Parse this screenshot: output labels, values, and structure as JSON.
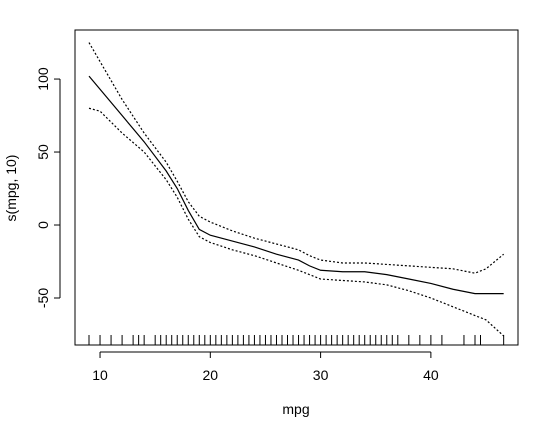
{
  "chart_data": {
    "type": "line",
    "x_label": "mpg",
    "y_label": "s(mpg, 10)",
    "x": [
      9,
      10,
      12,
      14,
      16,
      17,
      18,
      19,
      20,
      22,
      24,
      26,
      28,
      29,
      30,
      32,
      34,
      36,
      38,
      40,
      42,
      44,
      45,
      46.6
    ],
    "series": [
      {
        "color": "#000000",
        "dash": "none",
        "values": [
          102,
          93,
          75,
          57,
          37,
          25,
          10,
          -3,
          -7,
          -11,
          -15,
          -20,
          -24,
          -28,
          -31,
          -32,
          -32,
          -34,
          -37,
          -40,
          -44,
          -47,
          -47,
          -47
        ]
      },
      {
        "color": "#000000",
        "dash": "2 2",
        "values": [
          125,
          112,
          86,
          63,
          43,
          30,
          16,
          6,
          2,
          -4,
          -9,
          -13,
          -17,
          -21,
          -24,
          -26,
          -26,
          -27,
          -28,
          -29,
          -30,
          -33,
          -30,
          -20
        ]
      },
      {
        "color": "#000000",
        "dash": "2 2",
        "values": [
          80,
          78,
          63,
          50,
          31,
          19,
          4,
          -8,
          -12,
          -17,
          -21,
          -26,
          -31,
          -34,
          -37,
          -38,
          -39,
          -41,
          -45,
          -50,
          -56,
          -62,
          -65,
          -76
        ]
      }
    ],
    "rug": [
      9,
      10,
      11,
      12,
      13,
      13.5,
      14,
      15,
      15.5,
      16,
      16.5,
      17,
      17.5,
      18,
      18.5,
      19,
      19.5,
      20,
      20.5,
      21,
      21.5,
      22,
      22.5,
      23,
      23.5,
      24,
      24.5,
      25,
      25.5,
      26,
      26.5,
      27,
      27.5,
      28,
      28.5,
      29,
      29.5,
      30,
      30.5,
      31,
      31.5,
      32,
      32.5,
      33,
      33.5,
      34,
      34.5,
      35,
      35.5,
      36,
      36.5,
      37,
      38,
      39,
      40,
      41,
      43,
      44,
      44.5,
      46.6
    ],
    "xlim": [
      7.73,
      47.9
    ],
    "ylim": [
      -82.2,
      133.6
    ],
    "xticks": [
      10,
      20,
      30,
      40
    ],
    "yticks": [
      -50,
      0,
      50,
      100
    ]
  }
}
